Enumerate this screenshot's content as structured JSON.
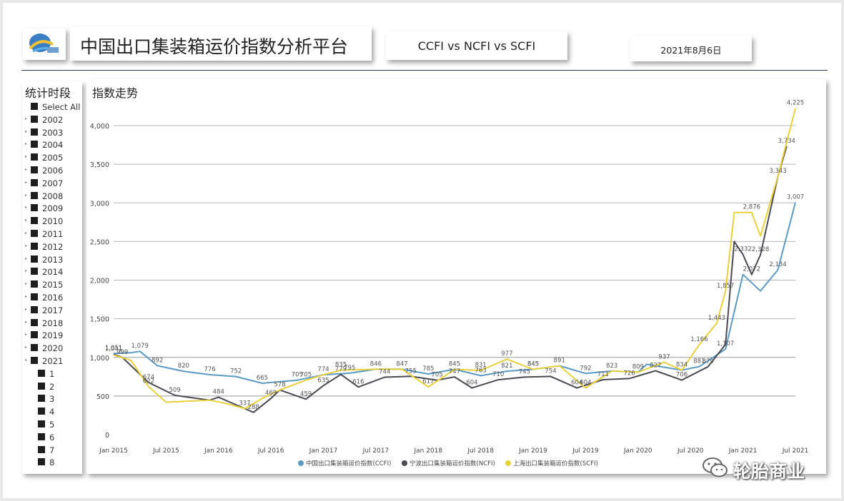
{
  "header": {
    "title": "中国出口集装箱运价指数分析平台",
    "compare": "CCFI vs NCFI vs SCFI",
    "date": "2021年8月6日"
  },
  "slicer": {
    "title": "统计时段",
    "items": [
      {
        "label": "Select All",
        "level": 0,
        "arrow": false
      },
      {
        "label": "2002",
        "level": 0,
        "arrow": true
      },
      {
        "label": "2003",
        "level": 0,
        "arrow": true
      },
      {
        "label": "2004",
        "level": 0,
        "arrow": true
      },
      {
        "label": "2005",
        "level": 0,
        "arrow": true
      },
      {
        "label": "2006",
        "level": 0,
        "arrow": true
      },
      {
        "label": "2007",
        "level": 0,
        "arrow": true
      },
      {
        "label": "2008",
        "level": 0,
        "arrow": true
      },
      {
        "label": "2009",
        "level": 0,
        "arrow": true
      },
      {
        "label": "2010",
        "level": 0,
        "arrow": true
      },
      {
        "label": "2011",
        "level": 0,
        "arrow": true
      },
      {
        "label": "2012",
        "level": 0,
        "arrow": true
      },
      {
        "label": "2013",
        "level": 0,
        "arrow": true
      },
      {
        "label": "2014",
        "level": 0,
        "arrow": true
      },
      {
        "label": "2015",
        "level": 0,
        "arrow": true
      },
      {
        "label": "2016",
        "level": 0,
        "arrow": true
      },
      {
        "label": "2017",
        "level": 0,
        "arrow": true
      },
      {
        "label": "2018",
        "level": 0,
        "arrow": true
      },
      {
        "label": "2019",
        "level": 0,
        "arrow": true
      },
      {
        "label": "2020",
        "level": 0,
        "arrow": true
      },
      {
        "label": "2021",
        "level": 0,
        "arrow": true
      },
      {
        "label": "1",
        "level": 1,
        "arrow": false
      },
      {
        "label": "2",
        "level": 1,
        "arrow": false
      },
      {
        "label": "3",
        "level": 1,
        "arrow": false
      },
      {
        "label": "4",
        "level": 1,
        "arrow": false
      },
      {
        "label": "5",
        "level": 1,
        "arrow": false
      },
      {
        "label": "6",
        "level": 1,
        "arrow": false
      },
      {
        "label": "7",
        "level": 1,
        "arrow": false
      },
      {
        "label": "8",
        "level": 1,
        "arrow": false
      }
    ]
  },
  "watermark": {
    "text": "轮胎商业"
  },
  "chart_data": {
    "type": "line",
    "title": "指数走势",
    "x_ticks": [
      "Jan 2015",
      "Jul 2015",
      "Jan 2016",
      "Jul 2016",
      "Jan 2017",
      "Jul 2017",
      "Jan 2018",
      "Jul 2018",
      "Jan 2019",
      "Jul 2019",
      "Jan 2020",
      "Jul 2020",
      "Jan 2021",
      "Jul 2021"
    ],
    "y_ticks": [
      0,
      500,
      1000,
      1500,
      2000,
      2500,
      3000,
      3500,
      4000
    ],
    "y_tick_labels": [
      "0",
      "500",
      "1,000",
      "1,500",
      "2,000",
      "2,500",
      "3,000",
      "3,500",
      "4,000"
    ],
    "ylim": [
      0,
      4200
    ],
    "xlim": [
      "2015-01",
      "2021-07"
    ],
    "grid": true,
    "legend": "bottom",
    "series": [
      {
        "name": "中国出口集装箱运价指数(CCFI)",
        "color": "#5b9ac4",
        "points": [
          [
            "2015-01",
            1051
          ],
          [
            "2015-03",
            1060
          ],
          [
            "2015-04",
            1079
          ],
          [
            "2015-06",
            892
          ],
          [
            "2015-09",
            820
          ],
          [
            "2015-12",
            776
          ],
          [
            "2016-03",
            752
          ],
          [
            "2016-06",
            665
          ],
          [
            "2016-10",
            705
          ],
          [
            "2017-01",
            774
          ],
          [
            "2017-04",
            795
          ],
          [
            "2017-07",
            846
          ],
          [
            "2017-10",
            847
          ],
          [
            "2018-01",
            785
          ],
          [
            "2018-04",
            845
          ],
          [
            "2018-07",
            763
          ],
          [
            "2018-10",
            821
          ],
          [
            "2019-01",
            845
          ],
          [
            "2019-04",
            891
          ],
          [
            "2019-07",
            792
          ],
          [
            "2019-10",
            823
          ],
          [
            "2020-01",
            809
          ],
          [
            "2020-02",
            911
          ],
          [
            "2020-06",
            834
          ],
          [
            "2020-08",
            881
          ],
          [
            "2020-11",
            1107
          ],
          [
            "2021-01",
            2072
          ],
          [
            "2021-03",
            1860
          ],
          [
            "2021-05",
            2134
          ],
          [
            "2021-07",
            3007
          ]
        ],
        "labels": [
          [
            "2015-01",
            1051,
            "1,051"
          ],
          [
            "2015-04",
            1079,
            "1,079"
          ],
          [
            "2015-06",
            892,
            "892"
          ],
          [
            "2015-09",
            820,
            "820"
          ],
          [
            "2015-12",
            776,
            "776"
          ],
          [
            "2016-03",
            752,
            "752"
          ],
          [
            "2016-06",
            665,
            "665"
          ],
          [
            "2016-10",
            705,
            "705"
          ],
          [
            "2017-01",
            774,
            "774"
          ],
          [
            "2017-04",
            795,
            "795"
          ],
          [
            "2017-07",
            846,
            "846"
          ],
          [
            "2017-10",
            847,
            "847"
          ],
          [
            "2018-01",
            785,
            "785"
          ],
          [
            "2018-04",
            845,
            "845"
          ],
          [
            "2018-07",
            763,
            "763"
          ],
          [
            "2018-10",
            821,
            "821"
          ],
          [
            "2019-01",
            845,
            "845"
          ],
          [
            "2019-07",
            792,
            "792"
          ],
          [
            "2019-10",
            823,
            "823"
          ],
          [
            "2020-01",
            809,
            "809"
          ],
          [
            "2020-08",
            881,
            "881"
          ],
          [
            "2020-11",
            1107,
            "1,107"
          ],
          [
            "2021-05",
            2134,
            "2,134"
          ],
          [
            "2021-07",
            3007,
            "3,007"
          ]
        ]
      },
      {
        "name": "宁波出口集装箱运价指数(NCFI)",
        "color": "#4a4a52",
        "points": [
          [
            "2015-01",
            1041
          ],
          [
            "2015-02",
            999
          ],
          [
            "2015-05",
            674
          ],
          [
            "2015-08",
            509
          ],
          [
            "2015-12",
            446
          ],
          [
            "2016-01",
            484
          ],
          [
            "2016-04",
            337
          ],
          [
            "2016-05",
            288
          ],
          [
            "2016-07",
            469
          ],
          [
            "2016-08",
            578
          ],
          [
            "2016-11",
            459
          ],
          [
            "2017-01",
            635
          ],
          [
            "2017-03",
            779
          ],
          [
            "2017-05",
            616
          ],
          [
            "2017-08",
            744
          ],
          [
            "2017-11",
            755
          ],
          [
            "2018-02",
            705
          ],
          [
            "2018-04",
            747
          ],
          [
            "2018-06",
            604
          ],
          [
            "2018-09",
            710
          ],
          [
            "2018-12",
            745
          ],
          [
            "2019-03",
            754
          ],
          [
            "2019-06",
            604
          ],
          [
            "2019-09",
            711
          ],
          [
            "2019-12",
            726
          ],
          [
            "2020-03",
            827
          ],
          [
            "2020-06",
            706
          ],
          [
            "2020-09",
            879
          ],
          [
            "2020-11",
            1166
          ],
          [
            "2020-12",
            2500
          ],
          [
            "2021-01",
            2332
          ],
          [
            "2021-02",
            2072
          ],
          [
            "2021-03",
            2328
          ],
          [
            "2021-05",
            3343
          ],
          [
            "2021-06",
            3734
          ]
        ],
        "labels": [
          [
            "2015-01",
            1041,
            "1,041"
          ],
          [
            "2015-02",
            999,
            "999"
          ],
          [
            "2015-05",
            674,
            "674"
          ],
          [
            "2015-08",
            509,
            "509"
          ],
          [
            "2016-01",
            484,
            "484"
          ],
          [
            "2016-04",
            337,
            "337"
          ],
          [
            "2016-05",
            288,
            "288"
          ],
          [
            "2016-07",
            469,
            "469"
          ],
          [
            "2016-08",
            578,
            "578"
          ],
          [
            "2016-11",
            459,
            "459"
          ],
          [
            "2017-01",
            635,
            "635"
          ],
          [
            "2017-03",
            779,
            "779"
          ],
          [
            "2017-05",
            616,
            "616"
          ],
          [
            "2017-08",
            744,
            "744"
          ],
          [
            "2017-11",
            755,
            "755"
          ],
          [
            "2018-02",
            705,
            "705"
          ],
          [
            "2018-04",
            747,
            "747"
          ],
          [
            "2018-06",
            604,
            "604"
          ],
          [
            "2018-09",
            710,
            "710"
          ],
          [
            "2018-12",
            745,
            "745"
          ],
          [
            "2019-03",
            754,
            "754"
          ],
          [
            "2019-06",
            604,
            "604"
          ],
          [
            "2019-09",
            711,
            "711"
          ],
          [
            "2019-12",
            726,
            "726"
          ],
          [
            "2020-03",
            827,
            "827"
          ],
          [
            "2020-06",
            706,
            "706"
          ],
          [
            "2020-09",
            879,
            "879"
          ],
          [
            "2021-01",
            2332,
            "2,332"
          ],
          [
            "2021-02",
            2072,
            "2,072"
          ],
          [
            "2021-03",
            2328,
            "2,328"
          ],
          [
            "2021-06",
            3734,
            "3,734"
          ]
        ]
      },
      {
        "name": "上海出口集装箱运价指数(SCFI)",
        "color": "#e8d13c",
        "points": [
          [
            "2015-01",
            1031
          ],
          [
            "2015-03",
            960
          ],
          [
            "2015-05",
            622
          ],
          [
            "2015-07",
            420
          ],
          [
            "2015-12",
            446
          ],
          [
            "2016-02",
            400
          ],
          [
            "2016-04",
            337
          ],
          [
            "2016-06",
            469
          ],
          [
            "2016-08",
            578
          ],
          [
            "2016-11",
            705
          ],
          [
            "2017-01",
            774
          ],
          [
            "2017-03",
            835
          ],
          [
            "2017-07",
            846
          ],
          [
            "2017-10",
            847
          ],
          [
            "2018-01",
            617
          ],
          [
            "2018-04",
            845
          ],
          [
            "2018-07",
            831
          ],
          [
            "2018-10",
            977
          ],
          [
            "2019-01",
            845
          ],
          [
            "2019-04",
            891
          ],
          [
            "2019-07",
            604
          ],
          [
            "2019-10",
            823
          ],
          [
            "2020-01",
            809
          ],
          [
            "2020-04",
            937
          ],
          [
            "2020-06",
            834
          ],
          [
            "2020-08",
            1166
          ],
          [
            "2020-10",
            1443
          ],
          [
            "2020-11",
            1857
          ],
          [
            "2020-12",
            2876
          ],
          [
            "2021-02",
            2876
          ],
          [
            "2021-03",
            2570
          ],
          [
            "2021-05",
            3343
          ],
          [
            "2021-07",
            4225
          ]
        ],
        "labels": [
          [
            "2015-05",
            622,
            "622"
          ],
          [
            "2016-11",
            705,
            "705"
          ],
          [
            "2017-03",
            835,
            "835"
          ],
          [
            "2018-01",
            617,
            "617"
          ],
          [
            "2018-07",
            831,
            "831"
          ],
          [
            "2018-10",
            977,
            "977"
          ],
          [
            "2019-01",
            845,
            "845"
          ],
          [
            "2019-04",
            891,
            "891"
          ],
          [
            "2019-07",
            604,
            "604"
          ],
          [
            "2020-04",
            937,
            "937"
          ],
          [
            "2020-06",
            834,
            "834"
          ],
          [
            "2020-08",
            1166,
            "1,166"
          ],
          [
            "2020-10",
            1443,
            "1,443"
          ],
          [
            "2020-11",
            1857,
            "1,857"
          ],
          [
            "2021-02",
            2876,
            "2,876"
          ],
          [
            "2021-05",
            3343,
            "3,343"
          ],
          [
            "2021-07",
            4225,
            "4,225"
          ]
        ]
      }
    ]
  }
}
